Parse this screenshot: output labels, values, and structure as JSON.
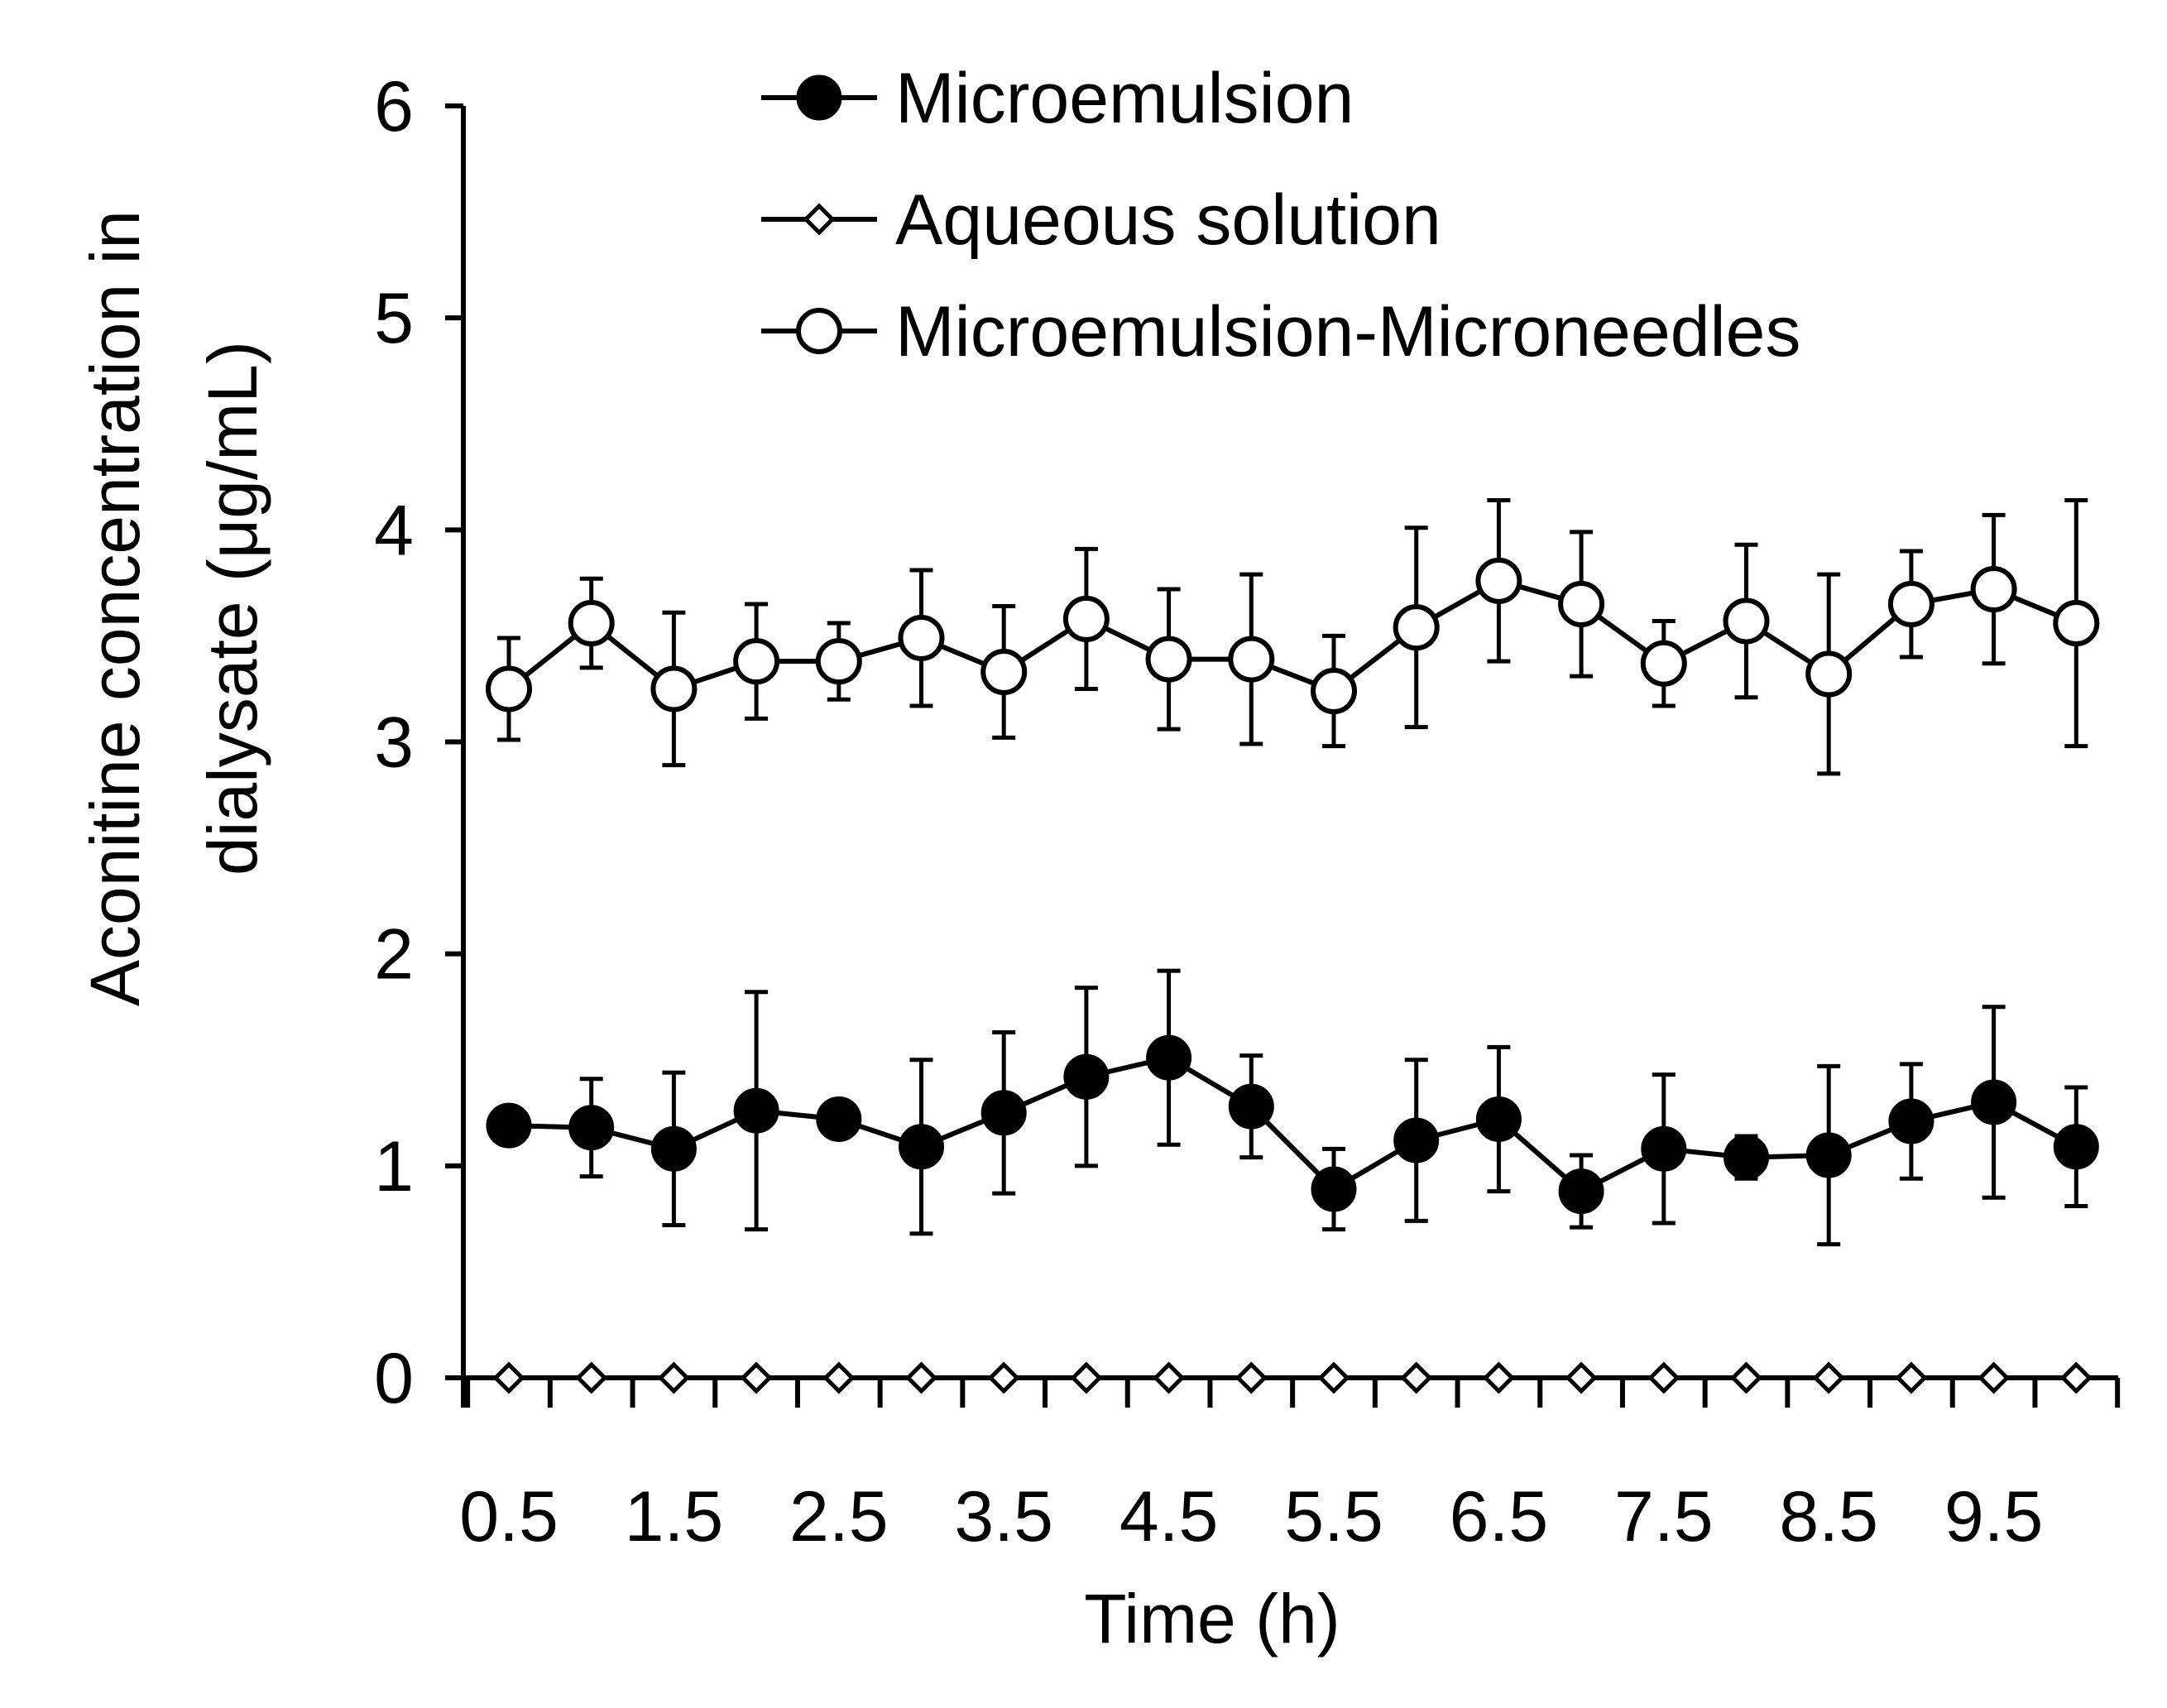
{
  "chart_data": {
    "type": "line",
    "xlabel": "Time (h)",
    "ylabel_lines": [
      "Aconitine concentration in",
      "dialysate (μg/mL)"
    ],
    "ylim": [
      0,
      6
    ],
    "y_ticks": [
      "0",
      "1",
      "2",
      "3",
      "4",
      "5",
      "6"
    ],
    "x": [
      0.5,
      1,
      1.5,
      2,
      2.5,
      3,
      3.5,
      4,
      4.5,
      5,
      5.5,
      6,
      6.5,
      7,
      7.5,
      8,
      8.5,
      9,
      9.5,
      10
    ],
    "x_tick_labels": [
      "0.5",
      "1.5",
      "2.5",
      "3.5",
      "4.5",
      "5.5",
      "6.5",
      "7.5",
      "8.5",
      "9.5"
    ],
    "legend_position": "top-center",
    "series": [
      {
        "name": "Microemulsion",
        "marker": "filled-circle",
        "values": [
          1.19,
          1.18,
          1.08,
          1.26,
          1.22,
          1.09,
          1.25,
          1.42,
          1.51,
          1.28,
          0.89,
          1.12,
          1.22,
          0.88,
          1.08,
          1.04,
          1.05,
          1.21,
          1.3,
          1.09
        ],
        "errors": [
          0.0,
          0.23,
          0.36,
          0.56,
          0.05,
          0.41,
          0.38,
          0.42,
          0.41,
          0.24,
          0.19,
          0.38,
          0.34,
          0.17,
          0.35,
          0.1,
          0.42,
          0.27,
          0.45,
          0.28
        ]
      },
      {
        "name": "Aqueous solution",
        "marker": "open-diamond",
        "values": [
          0,
          0,
          0,
          0,
          0,
          0,
          0,
          0,
          0,
          0,
          0,
          0,
          0,
          0,
          0,
          0,
          0,
          0,
          0,
          0
        ],
        "errors": [
          0,
          0,
          0,
          0,
          0,
          0,
          0,
          0,
          0,
          0,
          0,
          0,
          0,
          0,
          0,
          0,
          0,
          0,
          0,
          0
        ]
      },
      {
        "name": "Microemulsion-Microneedles",
        "marker": "open-circle",
        "values": [
          3.25,
          3.56,
          3.25,
          3.38,
          3.38,
          3.49,
          3.33,
          3.58,
          3.39,
          3.39,
          3.24,
          3.54,
          3.76,
          3.65,
          3.37,
          3.57,
          3.32,
          3.65,
          3.72,
          3.56
        ],
        "errors": [
          0.24,
          0.21,
          0.36,
          0.27,
          0.18,
          0.32,
          0.31,
          0.33,
          0.33,
          0.4,
          0.26,
          0.47,
          0.38,
          0.34,
          0.2,
          0.36,
          0.47,
          0.25,
          0.35,
          0.58
        ]
      }
    ]
  }
}
